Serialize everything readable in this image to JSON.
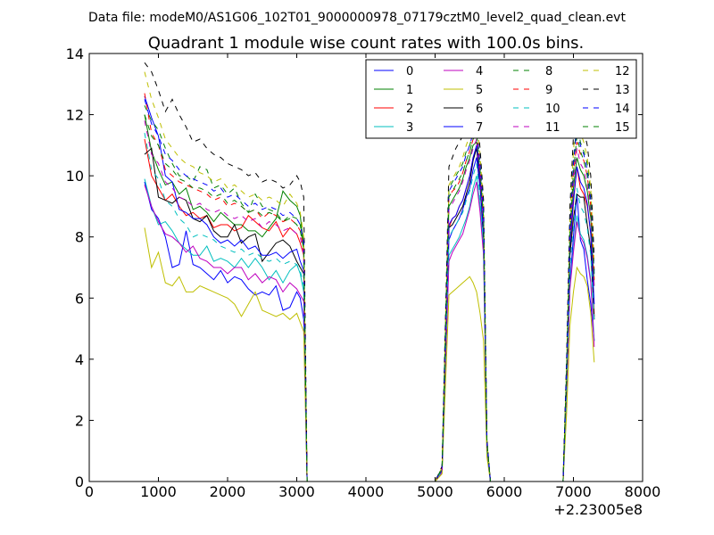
{
  "chart_data": {
    "type": "line",
    "suptitle": "Data file: modeM0/AS1G06_102T01_9000000978_07179cztM0_level2_quad_clean.evt",
    "title": "Quadrant 1 module wise count rates with 100.0s bins.",
    "xlabel": "",
    "ylabel": "",
    "x_offset_label": "+2.23005e8",
    "xlim": [
      0,
      8000
    ],
    "ylim": [
      0,
      14
    ],
    "x_ticks": [
      0,
      1000,
      2000,
      3000,
      4000,
      5000,
      6000,
      7000,
      8000
    ],
    "y_ticks": [
      0,
      2,
      4,
      6,
      8,
      10,
      12,
      14
    ],
    "legend_position": "top-right",
    "x": [
      800,
      900,
      1000,
      1100,
      1200,
      1300,
      1400,
      1500,
      1600,
      1700,
      1800,
      1900,
      2000,
      2100,
      2200,
      2300,
      2400,
      2500,
      2600,
      2700,
      2800,
      2900,
      3000,
      3050,
      3100,
      3150,
      3200,
      5000,
      5100,
      5200,
      5250,
      5300,
      5350,
      5400,
      5450,
      5500,
      5550,
      5600,
      5650,
      5700,
      5750,
      5800,
      6850,
      6900,
      6950,
      7000,
      7050,
      7100,
      7150,
      7200,
      7250,
      7300
    ],
    "series": [
      {
        "name": "0",
        "color": "#0000ff",
        "dash": "solid",
        "values": [
          9.8,
          8.9,
          8.6,
          8.0,
          7.0,
          7.1,
          8.2,
          7.1,
          7.0,
          6.8,
          6.6,
          6.9,
          6.5,
          6.7,
          6.6,
          6.3,
          6.1,
          6.2,
          6.1,
          6.4,
          5.6,
          5.7,
          6.2,
          6.0,
          5.3,
          0.0,
          0.0,
          0.0,
          0.35,
          7.9,
          8.2,
          8.4,
          8.6,
          8.9,
          9.3,
          9.6,
          10.2,
          10.6,
          9.6,
          7.9,
          1.2,
          0.0,
          0.0,
          3.0,
          6.5,
          8.0,
          9.4,
          7.9,
          7.6,
          6.6,
          5.8,
          4.6
        ]
      },
      {
        "name": "1",
        "color": "#008000",
        "dash": "solid",
        "values": [
          12.0,
          10.8,
          10.2,
          9.7,
          9.8,
          9.4,
          9.6,
          8.9,
          9.0,
          8.8,
          8.5,
          8.8,
          8.6,
          8.4,
          8.4,
          8.2,
          8.2,
          8.0,
          8.3,
          8.6,
          9.5,
          9.2,
          9.0,
          8.7,
          7.7,
          0.0,
          0.0,
          0.0,
          0.45,
          9.0,
          9.2,
          9.4,
          9.6,
          9.9,
          10.3,
          10.6,
          11.0,
          11.1,
          10.1,
          8.5,
          1.3,
          0.0,
          0.0,
          3.5,
          7.6,
          9.6,
          10.6,
          10.2,
          10.0,
          9.5,
          8.6,
          6.4
        ]
      },
      {
        "name": "2",
        "color": "#ff0000",
        "dash": "solid",
        "values": [
          11.2,
          10.0,
          9.6,
          9.2,
          9.4,
          9.0,
          8.7,
          8.8,
          8.6,
          8.7,
          8.3,
          8.4,
          8.4,
          8.2,
          8.3,
          8.7,
          8.5,
          8.3,
          8.2,
          8.5,
          8.0,
          8.3,
          8.1,
          7.8,
          7.4,
          0.0,
          0.0,
          0.0,
          0.4,
          8.3,
          8.6,
          8.7,
          9.0,
          9.2,
          9.6,
          10.0,
          10.6,
          10.9,
          9.8,
          8.2,
          1.2,
          0.0,
          0.0,
          3.3,
          7.5,
          9.1,
          10.3,
          9.6,
          9.4,
          9.0,
          8.1,
          5.4
        ]
      },
      {
        "name": "3",
        "color": "#00bfbf",
        "dash": "solid",
        "values": [
          9.9,
          9.0,
          8.4,
          8.5,
          8.2,
          7.8,
          7.6,
          7.4,
          7.4,
          7.7,
          7.2,
          7.3,
          7.2,
          7.0,
          7.3,
          7.0,
          7.3,
          7.0,
          6.6,
          6.9,
          6.5,
          6.9,
          7.1,
          6.8,
          6.2,
          0.0,
          0.0,
          0.0,
          0.3,
          7.4,
          7.6,
          7.8,
          8.0,
          8.3,
          8.6,
          9.0,
          9.6,
          10.0,
          9.0,
          7.6,
          1.1,
          0.0,
          0.0,
          2.8,
          6.4,
          7.6,
          8.7,
          8.1,
          7.9,
          7.4,
          6.6,
          4.6
        ]
      },
      {
        "name": "4",
        "color": "#bf00bf",
        "dash": "solid",
        "values": [
          9.7,
          9.0,
          8.5,
          8.1,
          8.0,
          7.8,
          7.5,
          7.7,
          7.3,
          7.2,
          7.0,
          7.0,
          6.8,
          7.0,
          7.0,
          6.6,
          6.8,
          6.5,
          6.7,
          6.6,
          6.2,
          6.5,
          6.3,
          6.1,
          5.9,
          0.0,
          0.0,
          0.0,
          0.3,
          7.2,
          7.5,
          7.7,
          7.9,
          8.1,
          8.5,
          8.9,
          9.4,
          9.8,
          8.8,
          7.4,
          1.1,
          0.0,
          0.0,
          2.8,
          6.3,
          7.5,
          8.5,
          8.0,
          7.8,
          7.3,
          6.5,
          4.4
        ]
      },
      {
        "name": "5",
        "color": "#bfbf00",
        "dash": "solid",
        "values": [
          8.3,
          7.0,
          7.5,
          6.5,
          6.4,
          6.7,
          6.2,
          6.2,
          6.4,
          6.3,
          6.2,
          6.1,
          6.0,
          5.8,
          5.4,
          5.8,
          6.2,
          5.6,
          5.5,
          5.4,
          5.5,
          5.3,
          5.5,
          5.2,
          4.9,
          0.0,
          0.0,
          0.0,
          0.25,
          6.1,
          6.2,
          6.3,
          6.4,
          6.5,
          6.6,
          6.7,
          6.5,
          6.2,
          5.5,
          4.6,
          0.8,
          0.0,
          0.0,
          2.2,
          5.1,
          6.2,
          7.0,
          6.8,
          6.7,
          6.4,
          5.5,
          3.9
        ]
      },
      {
        "name": "6",
        "color": "#000000",
        "dash": "solid",
        "values": [
          10.7,
          10.9,
          9.3,
          9.2,
          9.1,
          9.3,
          9.2,
          8.6,
          8.5,
          8.7,
          8.2,
          8.0,
          8.0,
          8.4,
          7.8,
          8.0,
          8.1,
          7.2,
          7.5,
          7.8,
          7.9,
          7.7,
          7.2,
          7.0,
          6.8,
          0.0,
          0.0,
          0.0,
          0.4,
          8.3,
          8.4,
          8.6,
          8.8,
          9.0,
          9.4,
          9.8,
          10.5,
          10.9,
          9.8,
          8.0,
          1.2,
          0.0,
          0.0,
          3.3,
          7.4,
          8.6,
          9.4,
          9.3,
          9.3,
          8.4,
          7.6,
          5.3
        ]
      },
      {
        "name": "7",
        "color": "#0000ff",
        "dash": "solid",
        "values": [
          12.6,
          11.9,
          11.3,
          10.0,
          9.8,
          8.9,
          8.8,
          8.6,
          8.6,
          8.4,
          8.0,
          7.8,
          7.9,
          7.7,
          7.9,
          7.6,
          7.7,
          7.4,
          7.4,
          7.5,
          7.3,
          7.5,
          7.6,
          7.2,
          6.9,
          0.0,
          0.0,
          0.0,
          0.4,
          8.4,
          8.6,
          8.7,
          9.0,
          9.2,
          9.6,
          10.0,
          10.6,
          11.0,
          9.9,
          8.2,
          1.2,
          0.0,
          0.0,
          3.4,
          7.7,
          9.2,
          10.3,
          9.8,
          9.6,
          9.1,
          8.1,
          5.8
        ]
      },
      {
        "name": "8",
        "color": "#008000",
        "dash": "dashed",
        "values": [
          12.3,
          11.8,
          11.5,
          10.9,
          10.4,
          10.0,
          10.0,
          9.8,
          10.3,
          10.2,
          9.6,
          9.7,
          9.4,
          9.6,
          9.1,
          8.8,
          9.4,
          9.0,
          8.9,
          8.8,
          8.5,
          8.7,
          8.6,
          8.4,
          7.6,
          0.0,
          0.0,
          0.0,
          0.45,
          9.6,
          9.8,
          10.0,
          10.2,
          10.4,
          10.8,
          11.0,
          11.4,
          11.5,
          10.4,
          8.8,
          1.3,
          0.0,
          0.0,
          3.8,
          8.4,
          10.5,
          11.8,
          11.1,
          10.8,
          10.4,
          9.4,
          6.9
        ]
      },
      {
        "name": "9",
        "color": "#ff0000",
        "dash": "dashed",
        "values": [
          12.7,
          11.4,
          11.0,
          10.2,
          10.0,
          9.8,
          9.7,
          9.6,
          9.5,
          9.4,
          9.2,
          9.3,
          9.0,
          9.1,
          9.0,
          8.8,
          8.9,
          8.6,
          8.8,
          8.7,
          8.5,
          8.6,
          8.4,
          8.2,
          7.6,
          0.0,
          0.0,
          0.0,
          0.45,
          9.3,
          9.5,
          9.6,
          9.8,
          10.1,
          10.5,
          10.8,
          11.2,
          11.4,
          10.2,
          8.6,
          1.3,
          0.0,
          0.0,
          3.6,
          8.1,
          10.1,
          11.1,
          10.7,
          10.5,
          10.0,
          9.0,
          6.6
        ]
      },
      {
        "name": "10",
        "color": "#00bfbf",
        "dash": "dashed",
        "values": [
          11.4,
          10.2,
          9.9,
          9.2,
          9.0,
          8.6,
          8.4,
          8.0,
          8.1,
          8.0,
          7.9,
          7.7,
          7.6,
          7.5,
          7.6,
          7.4,
          7.5,
          7.3,
          7.2,
          7.3,
          7.1,
          7.2,
          7.1,
          6.9,
          6.4,
          0.0,
          0.0,
          0.0,
          0.35,
          8.0,
          8.2,
          8.4,
          8.6,
          8.8,
          9.2,
          9.5,
          10.0,
          10.4,
          9.3,
          7.8,
          1.1,
          0.0,
          0.0,
          3.0,
          7.0,
          8.4,
          9.6,
          9.0,
          8.8,
          8.3,
          7.4,
          5.2
        ]
      },
      {
        "name": "11",
        "color": "#bf00bf",
        "dash": "dashed",
        "values": [
          11.8,
          10.7,
          10.4,
          9.8,
          9.6,
          9.3,
          9.2,
          9.0,
          9.1,
          8.9,
          8.8,
          8.9,
          8.7,
          8.6,
          8.7,
          8.5,
          8.6,
          8.3,
          8.5,
          8.4,
          8.2,
          8.3,
          8.1,
          8.0,
          7.4,
          0.0,
          0.0,
          0.0,
          0.4,
          8.9,
          9.1,
          9.3,
          9.5,
          9.8,
          10.2,
          10.5,
          10.9,
          11.2,
          10.0,
          8.4,
          1.2,
          0.0,
          0.0,
          3.5,
          7.9,
          9.8,
          10.9,
          10.4,
          10.2,
          9.7,
          8.7,
          6.3
        ]
      },
      {
        "name": "12",
        "color": "#bfbf00",
        "dash": "dashed",
        "values": [
          13.4,
          12.5,
          11.9,
          11.2,
          10.9,
          10.6,
          10.4,
          10.3,
          10.1,
          10.0,
          9.8,
          9.9,
          9.6,
          9.7,
          9.5,
          9.3,
          9.4,
          9.2,
          9.3,
          9.2,
          9.0,
          9.4,
          9.1,
          8.8,
          8.0,
          0.0,
          0.0,
          0.0,
          0.45,
          9.7,
          9.9,
          10.1,
          10.3,
          10.6,
          11.0,
          11.3,
          11.7,
          11.9,
          10.7,
          9.0,
          1.3,
          0.0,
          0.0,
          3.8,
          8.6,
          10.8,
          12.3,
          11.4,
          11.1,
          10.6,
          9.6,
          7.1
        ]
      },
      {
        "name": "13",
        "color": "#000000",
        "dash": "dashed",
        "values": [
          13.7,
          13.4,
          12.8,
          12.1,
          12.5,
          12.0,
          11.6,
          11.1,
          11.2,
          10.9,
          10.7,
          10.6,
          10.4,
          10.3,
          10.2,
          10.0,
          10.1,
          9.8,
          9.9,
          9.8,
          9.6,
          9.7,
          10.0,
          9.8,
          9.3,
          0.0,
          0.0,
          0.0,
          0.5,
          10.3,
          10.6,
          10.9,
          11.1,
          11.3,
          11.6,
          11.8,
          12.0,
          12.1,
          10.9,
          9.2,
          1.4,
          0.0,
          0.0,
          4.0,
          9.0,
          11.3,
          12.1,
          11.8,
          11.5,
          11.0,
          10.0,
          7.3
        ]
      },
      {
        "name": "14",
        "color": "#0000ff",
        "dash": "dashed",
        "values": [
          12.5,
          11.7,
          11.3,
          10.7,
          10.5,
          10.2,
          10.0,
          9.9,
          9.8,
          9.7,
          9.5,
          9.6,
          9.3,
          9.4,
          9.2,
          9.0,
          9.1,
          8.9,
          9.0,
          8.9,
          8.7,
          8.8,
          8.6,
          8.4,
          7.8,
          0.0,
          0.0,
          0.0,
          0.45,
          9.5,
          9.7,
          9.9,
          10.1,
          10.3,
          10.7,
          11.0,
          11.4,
          11.6,
          10.4,
          8.8,
          1.3,
          0.0,
          0.0,
          3.7,
          8.3,
          10.4,
          11.6,
          11.0,
          10.7,
          10.2,
          9.2,
          6.8
        ]
      },
      {
        "name": "15",
        "color": "#008000",
        "dash": "dashed",
        "values": [
          12.0,
          11.3,
          11.0,
          10.4,
          10.2,
          9.9,
          9.8,
          9.6,
          9.6,
          9.5,
          9.3,
          9.4,
          9.1,
          9.2,
          9.0,
          8.8,
          8.9,
          8.7,
          8.8,
          8.7,
          8.5,
          8.6,
          8.4,
          8.2,
          7.6,
          0.0,
          0.0,
          0.0,
          0.45,
          9.3,
          9.5,
          9.7,
          9.9,
          10.1,
          10.5,
          10.8,
          11.2,
          11.4,
          10.2,
          8.6,
          1.3,
          0.0,
          0.0,
          3.6,
          8.1,
          10.1,
          11.3,
          10.8,
          10.5,
          10.0,
          9.0,
          6.6
        ]
      }
    ]
  }
}
